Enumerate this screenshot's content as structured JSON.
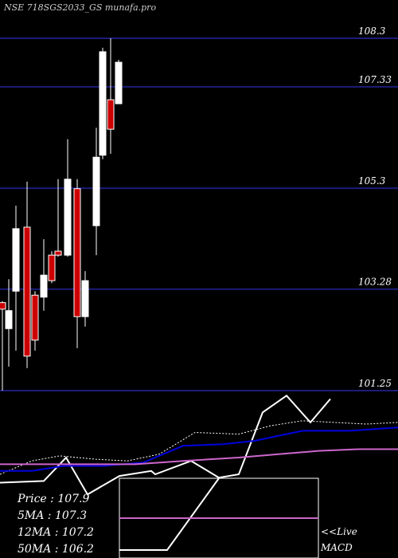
{
  "chart_data": [
    {
      "type": "candlestick",
      "title": "NSE 718SGS2033_GS munafa.pro",
      "ylim": [
        101.25,
        108.3
      ],
      "yticks": [
        108.3,
        107.33,
        105.3,
        103.28,
        101.25
      ],
      "grid": true,
      "up_color": "#ffffff",
      "down_color": "#cc0000",
      "open": [
        103.01,
        102.49,
        103.24,
        104.52,
        103.16,
        103.12,
        103.96,
        104.04,
        103.96,
        105.29,
        102.73,
        104.55,
        105.96,
        107.07,
        106.99
      ],
      "high": [
        103.04,
        103.48,
        104.95,
        105.43,
        103.24,
        104.28,
        104.04,
        105.48,
        106.28,
        105.48,
        103.64,
        106.51,
        108.11,
        108.3,
        107.87
      ],
      "low": [
        101.25,
        101.73,
        102.05,
        101.7,
        102.05,
        102.85,
        103.4,
        103.93,
        103.93,
        102.1,
        102.53,
        103.96,
        105.88,
        105.99,
        106.99
      ],
      "close": [
        102.88,
        102.85,
        104.49,
        101.94,
        102.26,
        103.56,
        103.45,
        103.96,
        105.48,
        102.73,
        103.45,
        105.92,
        108.03,
        106.48,
        107.82
      ]
    },
    {
      "type": "line",
      "xlim": [
        0,
        500
      ],
      "ylim": [
        0,
        1
      ],
      "series": [
        {
          "color": "#ffffff",
          "dash": false,
          "x": [
            0,
            55,
            83,
            110,
            150,
            190,
            195,
            240,
            275,
            300,
            330,
            360,
            390,
            415
          ],
          "values": [
            0.45,
            0.46,
            0.6,
            0.38,
            0.49,
            0.52,
            0.5,
            0.58,
            0.48,
            0.5,
            0.87,
            0.97,
            0.81,
            0.95
          ]
        },
        {
          "color": "#ffffff",
          "dash": true,
          "x": [
            0,
            40,
            75,
            120,
            160,
            200,
            245,
            300,
            340,
            380,
            420,
            460,
            500
          ],
          "values": [
            0.5,
            0.58,
            0.61,
            0.59,
            0.58,
            0.62,
            0.75,
            0.74,
            0.79,
            0.82,
            0.81,
            0.8,
            0.81
          ]
        },
        {
          "color": "#0000dd",
          "dash": false,
          "x": [
            0,
            40,
            80,
            130,
            180,
            230,
            280,
            320,
            380,
            440,
            500
          ],
          "values": [
            0.52,
            0.52,
            0.55,
            0.55,
            0.57,
            0.67,
            0.68,
            0.7,
            0.76,
            0.76,
            0.78
          ]
        },
        {
          "color": "#cc66cc",
          "dash": false,
          "x": [
            0,
            60,
            120,
            170,
            230,
            300,
            350,
            400,
            450,
            500
          ],
          "values": [
            0.56,
            0.56,
            0.56,
            0.56,
            0.58,
            0.6,
            0.62,
            0.64,
            0.65,
            0.65
          ]
        }
      ],
      "annotations": [
        "Price : 107.9",
        "5MA : 107.3",
        "12MA : 107.2",
        "50MA : 106.2"
      ]
    },
    {
      "type": "line",
      "xlim": [
        0,
        250
      ],
      "ylim": [
        0,
        1
      ],
      "series": [
        {
          "color": "#ffffff",
          "dash": false,
          "x": [
            0,
            60,
            125
          ],
          "values": [
            0.1,
            0.1,
            1.0
          ]
        },
        {
          "color": "#cc66cc",
          "dash": false,
          "x": [
            0,
            250
          ],
          "values": [
            0.5,
            0.5
          ]
        }
      ],
      "annotations": [
        "<<Live",
        "MACD"
      ]
    }
  ]
}
